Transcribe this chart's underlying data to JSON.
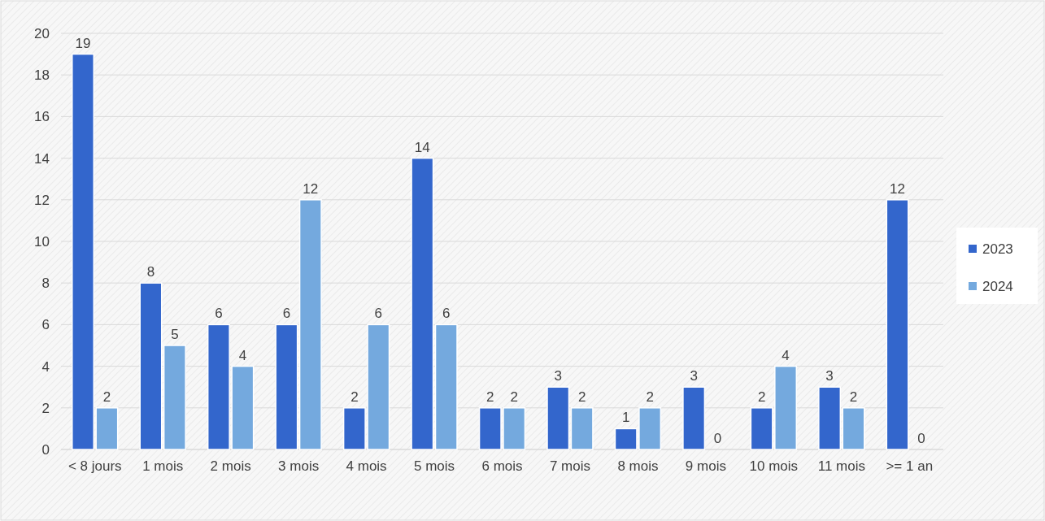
{
  "chart_data": {
    "type": "bar",
    "categories": [
      "< 8 jours",
      "1 mois",
      "2 mois",
      "3 mois",
      "4 mois",
      "5 mois",
      "6 mois",
      "7 mois",
      "8 mois",
      "9 mois",
      "10 mois",
      "11 mois",
      ">= 1 an"
    ],
    "series": [
      {
        "name": "2023",
        "color": "#3366cc",
        "values": [
          19,
          8,
          6,
          6,
          2,
          14,
          2,
          3,
          1,
          3,
          2,
          3,
          12
        ]
      },
      {
        "name": "2024",
        "color": "#74a9de",
        "values": [
          2,
          5,
          4,
          12,
          6,
          6,
          2,
          2,
          2,
          0,
          4,
          2,
          0
        ]
      }
    ],
    "ylim": [
      0,
      20
    ],
    "yticks": [
      0,
      2,
      4,
      6,
      8,
      10,
      12,
      14,
      16,
      18,
      20
    ],
    "grid": "y",
    "legend": "right",
    "data_labels": true
  }
}
